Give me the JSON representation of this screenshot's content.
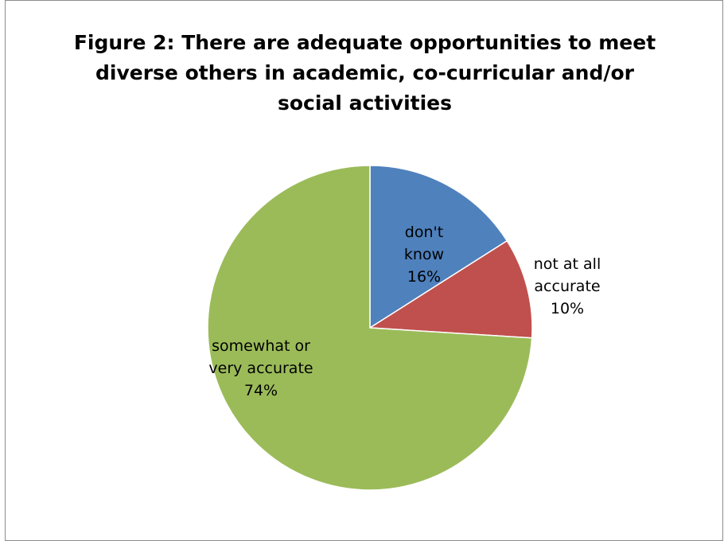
{
  "chart_data": {
    "type": "pie",
    "title_lines": [
      "Figure 2: There are adequate opportunities to meet",
      "diverse others in academic, co-curricular and/or",
      "social activities"
    ],
    "slices": [
      {
        "label_lines": [
          "don't",
          "know"
        ],
        "percent_text": "16%",
        "value": 16,
        "color": "#4f81bd"
      },
      {
        "label_lines": [
          "not at all",
          "accurate"
        ],
        "percent_text": "10%",
        "value": 10,
        "color": "#c0504d"
      },
      {
        "label_lines": [
          "somewhat or",
          "very accurate"
        ],
        "percent_text": "74%",
        "value": 74,
        "color": "#9bbb59"
      }
    ],
    "start_angle": "12 o'clock",
    "direction": "clockwise",
    "legend": "none"
  }
}
